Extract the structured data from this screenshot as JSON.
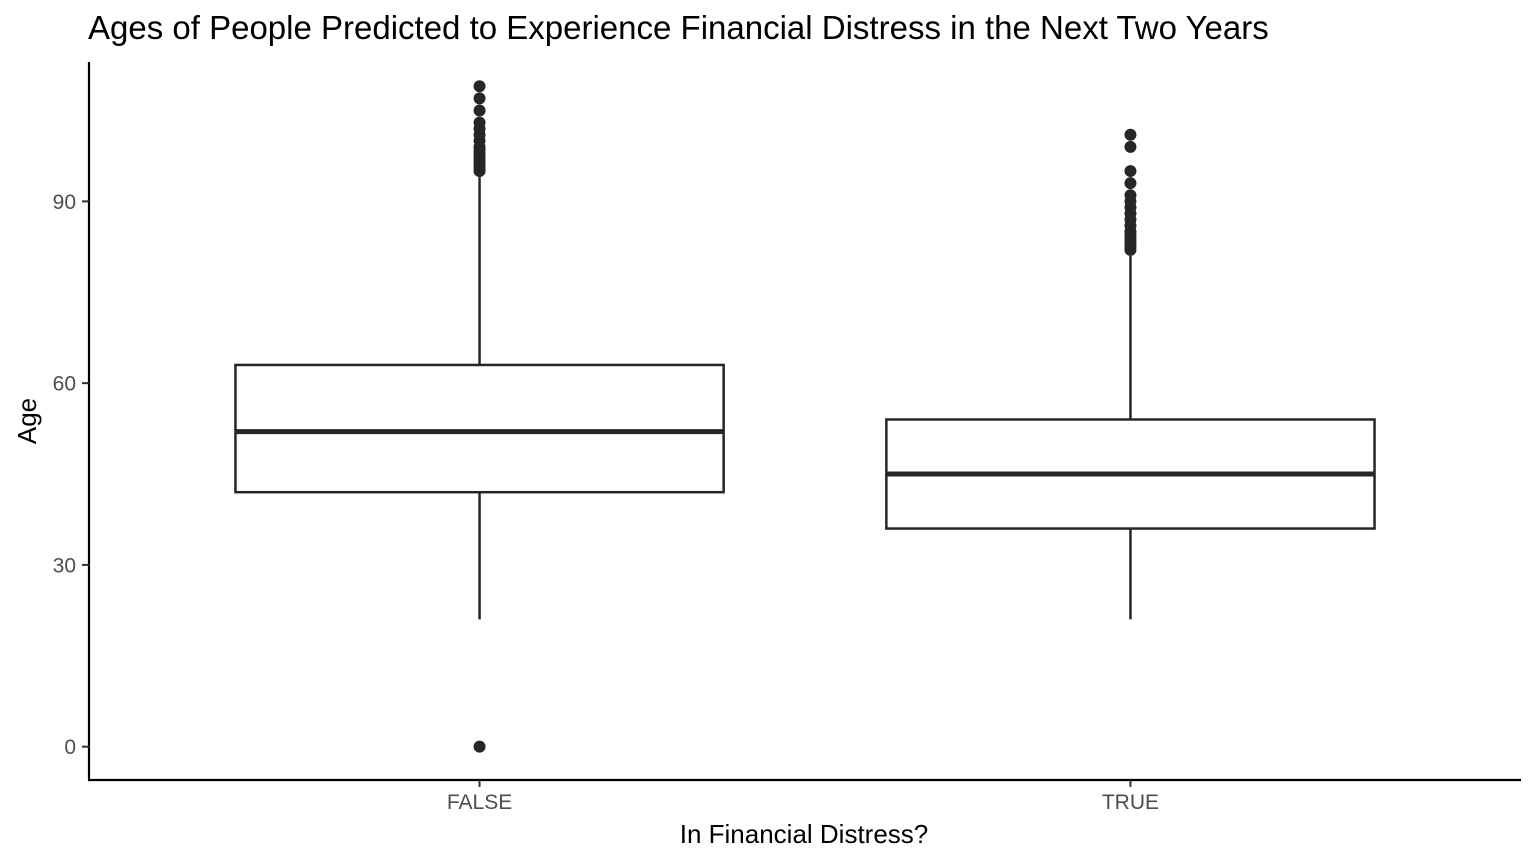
{
  "chart_data": {
    "type": "box",
    "title": "Ages of People Predicted to Experience Financial Distress in the Next Two Years",
    "xlabel": "In Financial Distress?",
    "ylabel": "Age",
    "categories": [
      "FALSE",
      "TRUE"
    ],
    "ylim": [
      -5.5,
      113
    ],
    "yticks": [
      0,
      30,
      60,
      90
    ],
    "grid": false,
    "legend": "none",
    "colors": {
      "box_stroke": "#262626",
      "box_fill": "#ffffff",
      "axis": "#000000",
      "tick_label": "#4d4d4d"
    },
    "boxes": [
      {
        "category": "FALSE",
        "whisker_low": 21,
        "q1": 42,
        "median": 52,
        "q3": 63,
        "whisker_high": 94,
        "outliers": [
          0,
          95,
          95.5,
          96,
          96.5,
          97,
          97.5,
          98,
          98.5,
          99,
          100,
          101,
          102,
          103,
          105,
          107,
          109
        ]
      },
      {
        "category": "TRUE",
        "whisker_low": 21,
        "q1": 36,
        "median": 45,
        "q3": 54,
        "whisker_high": 81,
        "outliers": [
          82,
          82.5,
          83,
          83.5,
          84,
          84.5,
          85,
          86,
          87,
          88,
          89,
          90,
          91,
          93,
          95,
          99,
          101
        ]
      }
    ]
  }
}
